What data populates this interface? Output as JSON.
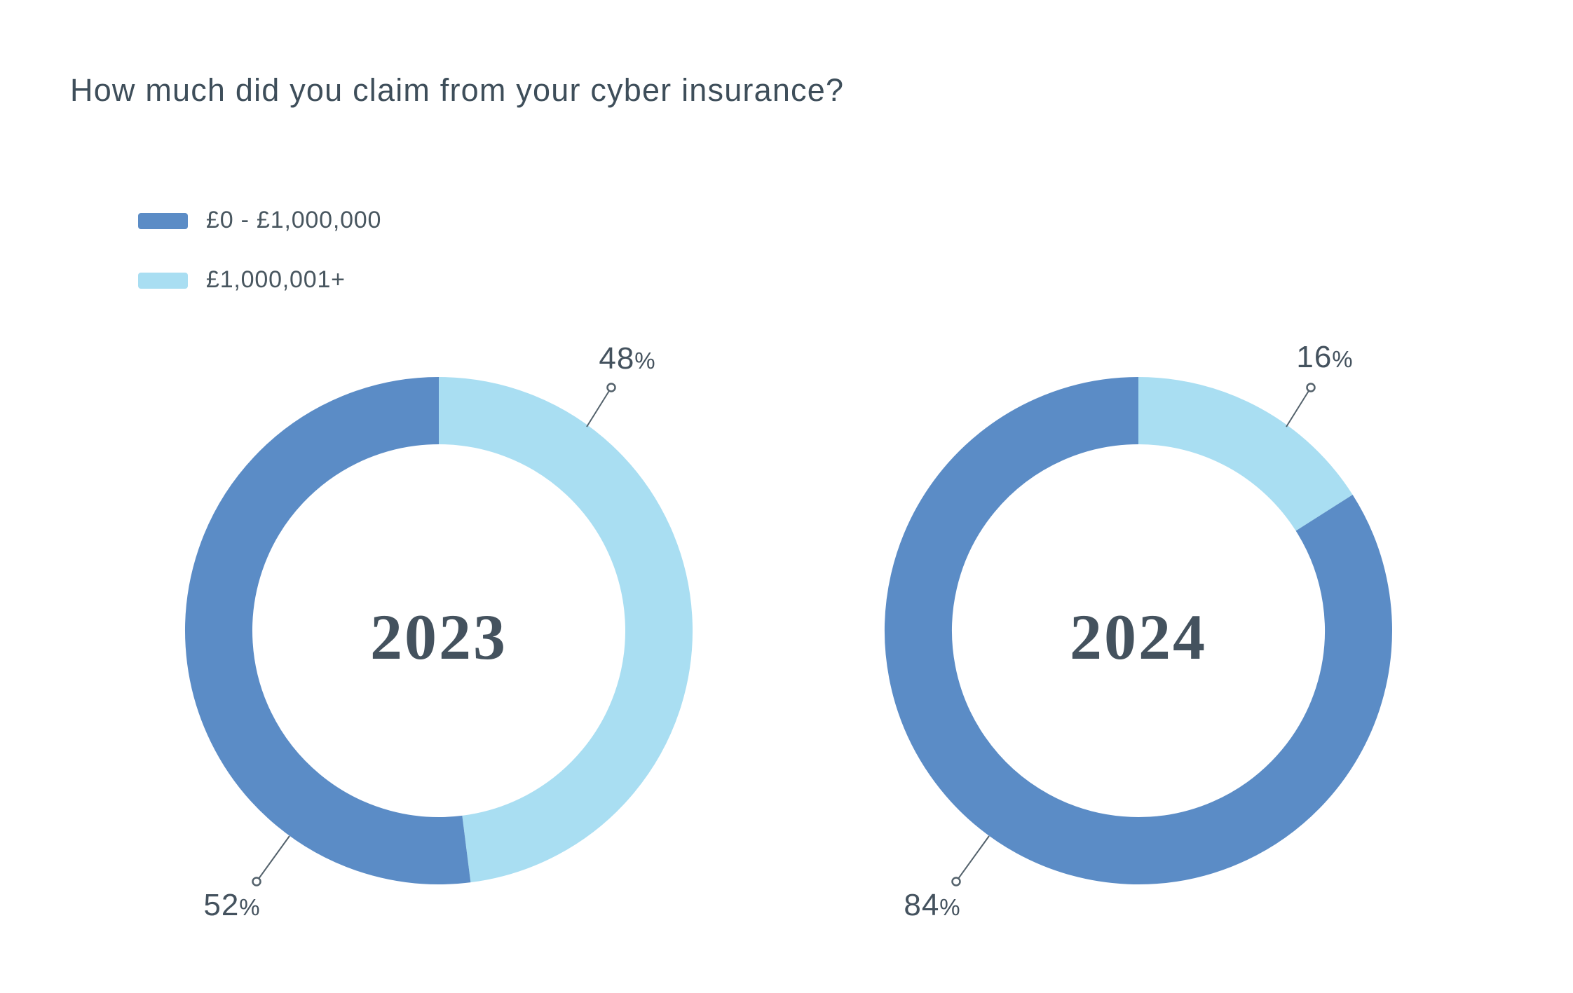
{
  "page": {
    "title": "How much did you claim from your cyber insurance?"
  },
  "legend": {
    "items": [
      {
        "label": "£0 - £1,000,000",
        "color": "#5B8CC6"
      },
      {
        "label": "£1,000,001+",
        "color": "#A9DEF2"
      }
    ]
  },
  "charts": [
    {
      "year": "2023",
      "callouts": {
        "top": {
          "value": "48",
          "suffix": "%",
          "category": "£1,000,001+"
        },
        "bottom": {
          "value": "52",
          "suffix": "%",
          "category": "£0 - £1,000,000"
        }
      }
    },
    {
      "year": "2024",
      "callouts": {
        "top": {
          "value": "16",
          "suffix": "%",
          "category": "£1,000,001+"
        },
        "bottom": {
          "value": "84",
          "suffix": "%",
          "category": "£0 - £1,000,000"
        }
      }
    }
  ],
  "chart_data": [
    {
      "type": "pie",
      "subtype": "donut",
      "title": "How much did you claim from your cyber insurance?",
      "center_label": "2023",
      "categories": [
        "£0 - £1,000,000",
        "£1,000,001+"
      ],
      "values": [
        52,
        48
      ],
      "unit": "percent",
      "colors": [
        "#5B8CC6",
        "#A9DEF2"
      ],
      "start_angle_deg": 0,
      "direction": "clockwise",
      "first_drawn_category_index": 1,
      "legend_position": "top-left",
      "data_labels": [
        "52%",
        "48%"
      ]
    },
    {
      "type": "pie",
      "subtype": "donut",
      "title": "How much did you claim from your cyber insurance?",
      "center_label": "2024",
      "categories": [
        "£0 - £1,000,000",
        "£1,000,001+"
      ],
      "values": [
        84,
        16
      ],
      "unit": "percent",
      "colors": [
        "#5B8CC6",
        "#A9DEF2"
      ],
      "start_angle_deg": 0,
      "direction": "clockwise",
      "first_drawn_category_index": 1,
      "legend_position": "top-left",
      "data_labels": [
        "84%",
        "16%"
      ]
    }
  ],
  "style": {
    "background": "#FFFFFF",
    "title_color": "#3E4E5A",
    "label_color": "#44525E",
    "leader_line_color": "#53616B",
    "slice_dark": "#5B8CC6",
    "slice_light": "#A9DEF2"
  }
}
